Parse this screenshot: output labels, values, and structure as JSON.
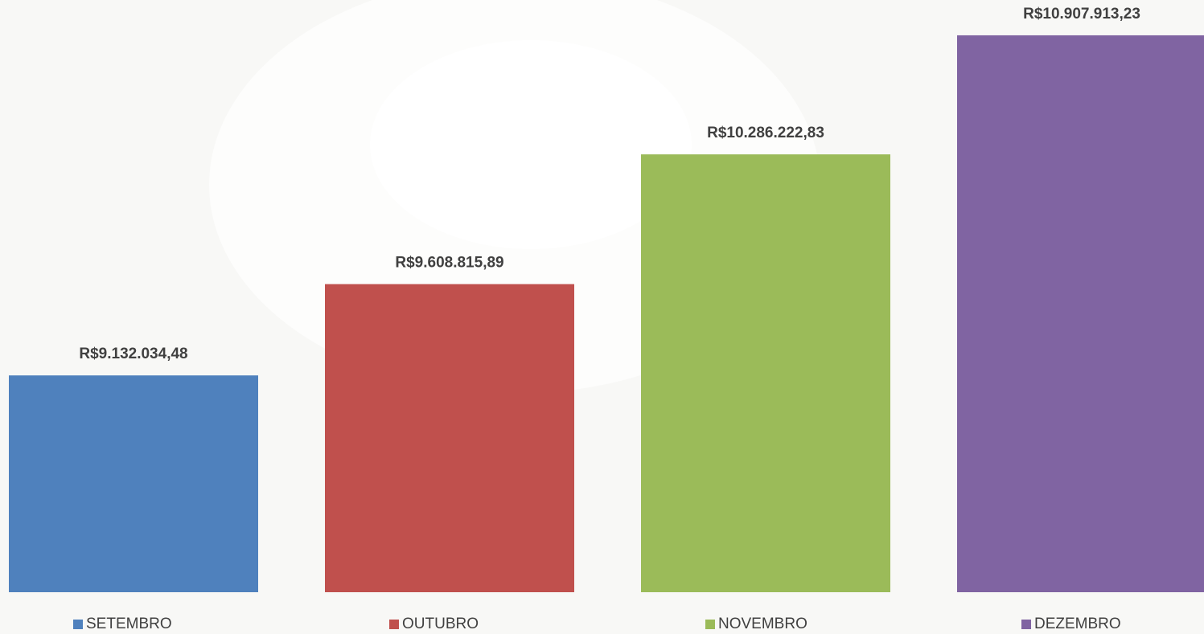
{
  "chart_data": {
    "type": "bar",
    "categories": [
      "SETEMBRO",
      "OUTUBRO",
      "NOVEMBRO",
      "DEZEMBRO"
    ],
    "values": [
      9132034.48,
      9608815.89,
      10286222.83,
      10907913.23
    ],
    "value_labels": [
      "R$9.132.034,48",
      "R$9.608.815,89",
      "R$10.286.222,83",
      "R$10.907.913,23"
    ],
    "colors": [
      "#4f81bd",
      "#c0504d",
      "#9bbb59",
      "#8064a2"
    ],
    "ylim": [
      8000000,
      11000000
    ],
    "legend": "bottom"
  }
}
